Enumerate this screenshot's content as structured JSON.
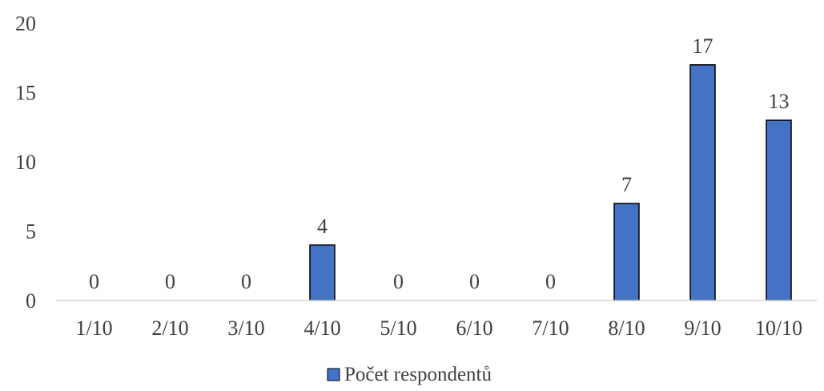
{
  "chart_data": {
    "type": "bar",
    "title": "",
    "xlabel": "",
    "ylabel": "",
    "categories": [
      "1/10",
      "2/10",
      "3/10",
      "4/10",
      "5/10",
      "6/10",
      "7/10",
      "8/10",
      "9/10",
      "10/10"
    ],
    "series": [
      {
        "name": "Počet respondentů",
        "values": [
          0,
          0,
          0,
          4,
          0,
          0,
          0,
          7,
          17,
          13
        ],
        "color": "#4472C4"
      }
    ],
    "data_labels": [
      "0",
      "0",
      "0",
      "4",
      "0",
      "0",
      "0",
      "7",
      "17",
      "13"
    ],
    "ylim": [
      0,
      20
    ],
    "yticks": [
      "0",
      "5",
      "10",
      "15",
      "20"
    ],
    "grid": false,
    "legend_position": "bottom",
    "bar_edge_color": "#000000",
    "axis_color": "#d9d9d9"
  }
}
